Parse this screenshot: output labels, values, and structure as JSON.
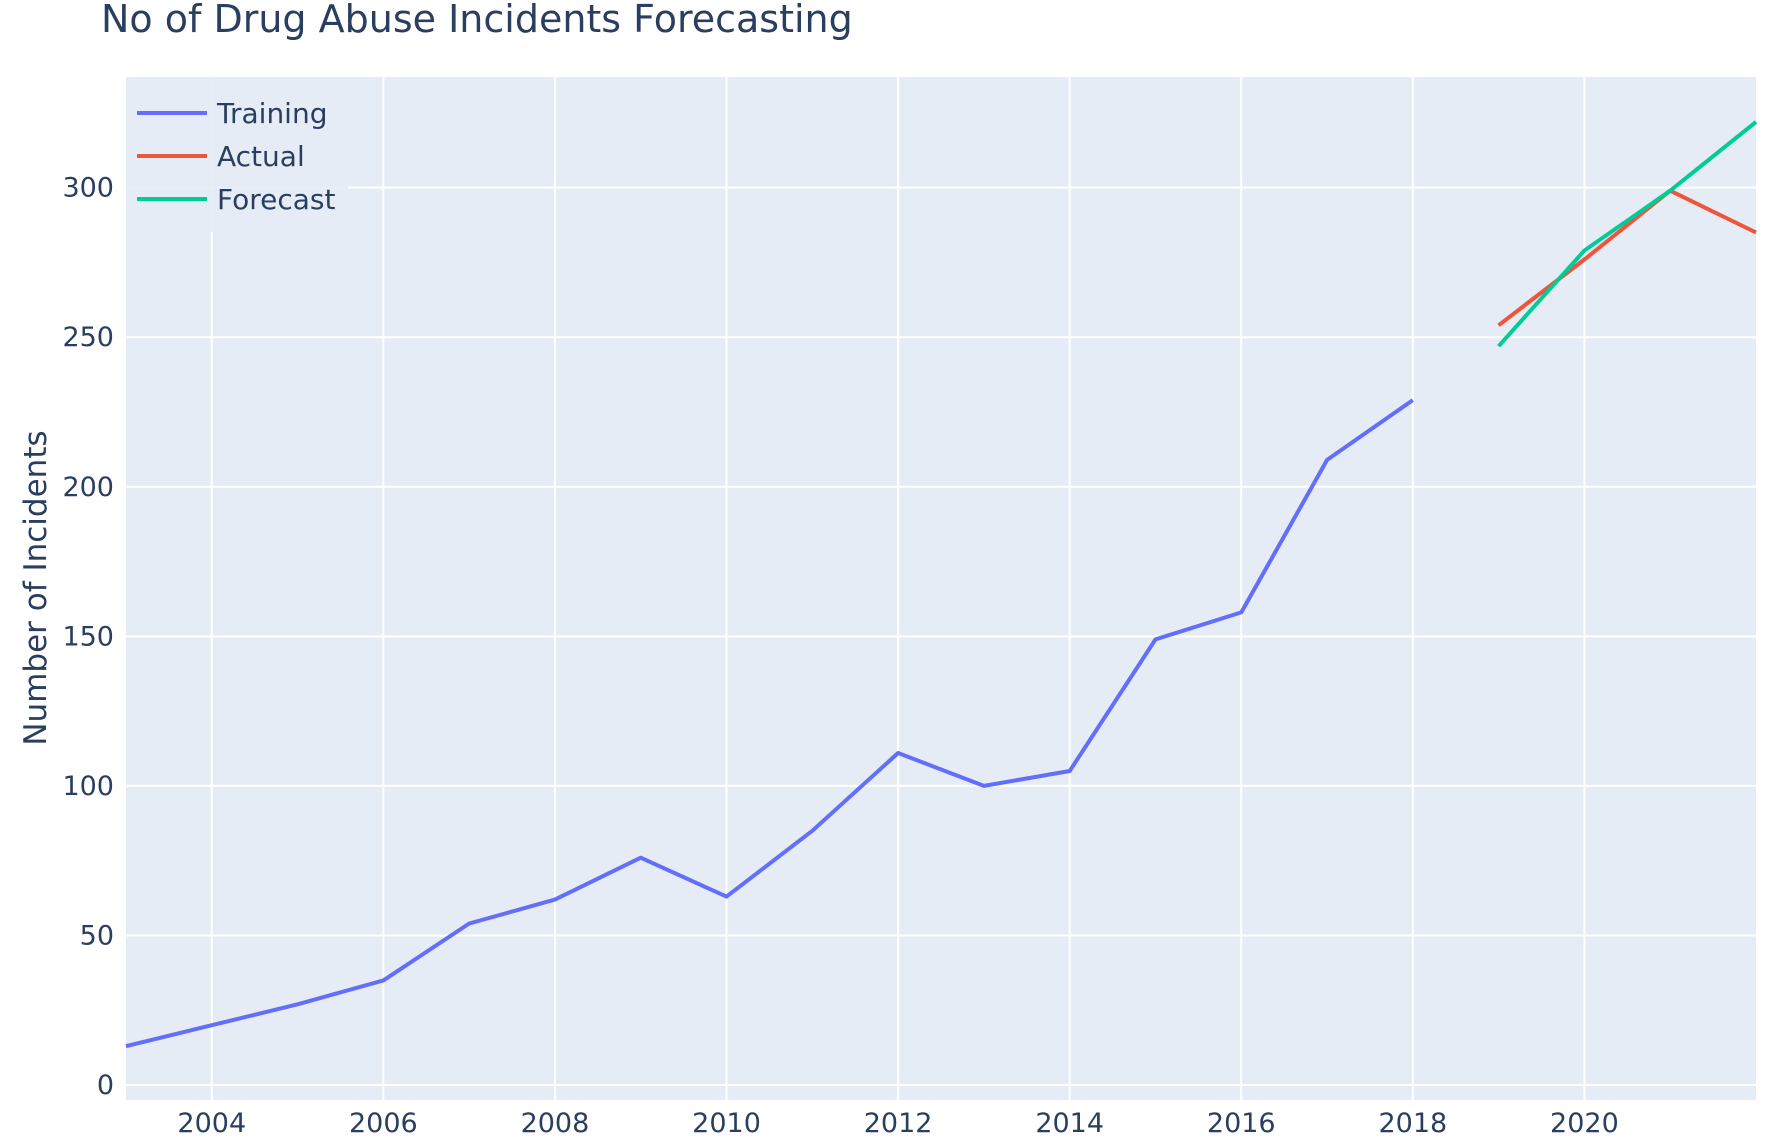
{
  "chart_data": {
    "type": "line",
    "title": "No of Drug Abuse Incidents Forecasting",
    "xlabel": "",
    "ylabel": "Number of Incidents",
    "xlim": [
      2003,
      2022
    ],
    "ylim": [
      -5,
      337
    ],
    "x_ticks": [
      2004,
      2006,
      2008,
      2010,
      2012,
      2014,
      2016,
      2018,
      2020
    ],
    "y_ticks": [
      0,
      50,
      100,
      150,
      200,
      250,
      300
    ],
    "grid": true,
    "legend_position": "top-left",
    "series": [
      {
        "name": "Training",
        "color": "#636efa",
        "x": [
          2003,
          2004,
          2005,
          2006,
          2007,
          2008,
          2009,
          2010,
          2011,
          2012,
          2013,
          2014,
          2015,
          2016,
          2017,
          2018
        ],
        "y": [
          13,
          20,
          27,
          35,
          54,
          62,
          76,
          63,
          85,
          111,
          100,
          105,
          149,
          158,
          209,
          229
        ]
      },
      {
        "name": "Actual",
        "color": "#ef553b",
        "x": [
          2019,
          2020,
          2021,
          2022
        ],
        "y": [
          254,
          276,
          299,
          285
        ]
      },
      {
        "name": "Forecast",
        "color": "#00cc96",
        "x": [
          2019,
          2020,
          2021,
          2022
        ],
        "y": [
          247,
          279,
          299,
          322
        ]
      }
    ]
  }
}
